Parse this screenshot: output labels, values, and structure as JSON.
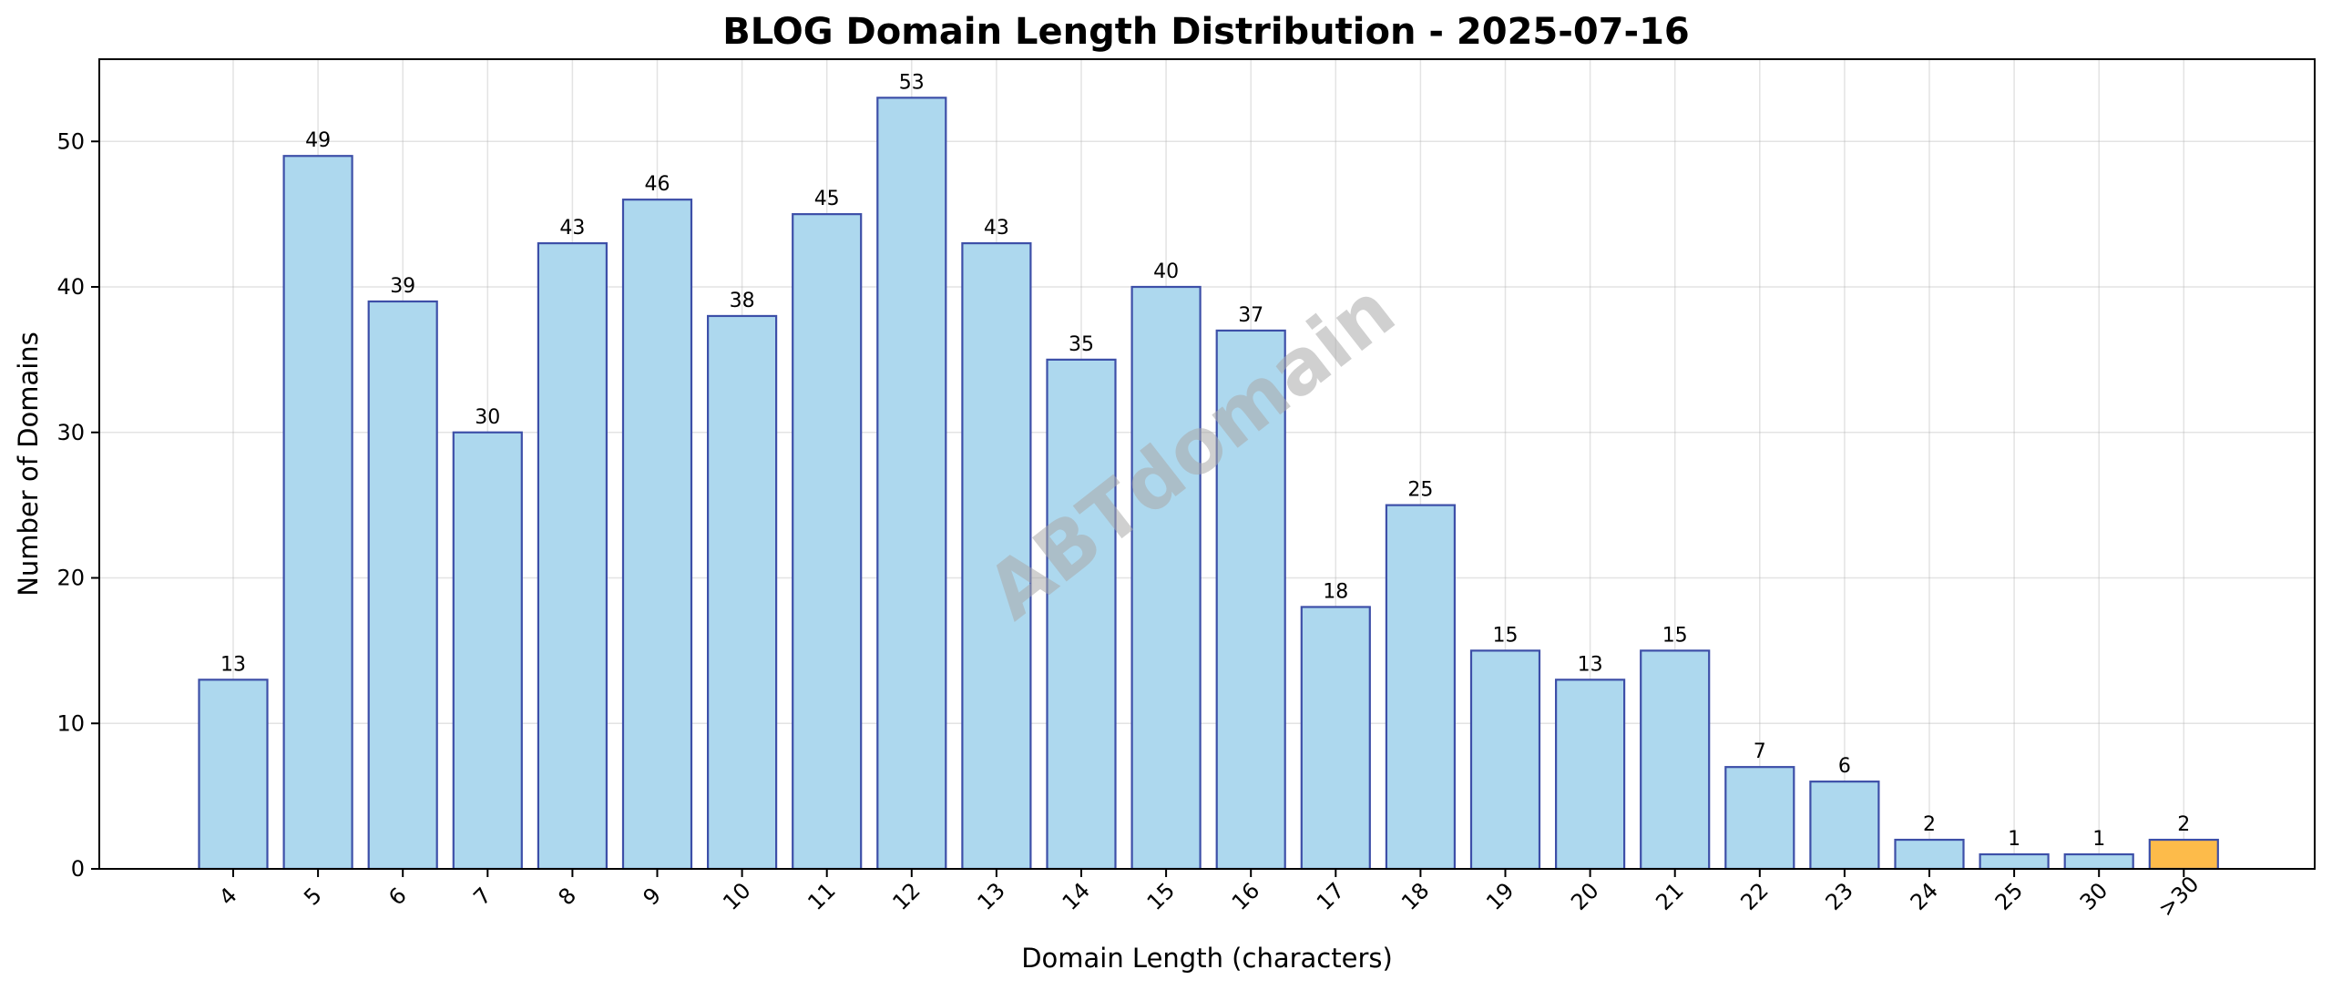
{
  "chart_data": {
    "type": "bar",
    "title": "BLOG Domain Length Distribution - 2025-07-16",
    "xlabel": "Domain Length (characters)",
    "ylabel": "Number of Domains",
    "categories": [
      "4",
      "5",
      "6",
      "7",
      "8",
      "9",
      "10",
      "11",
      "12",
      "13",
      "14",
      "15",
      "16",
      "17",
      "18",
      "19",
      "20",
      "21",
      "22",
      "23",
      "24",
      "25",
      "30",
      ">30"
    ],
    "values": [
      13,
      49,
      39,
      30,
      43,
      46,
      38,
      45,
      53,
      43,
      35,
      40,
      37,
      18,
      25,
      15,
      13,
      15,
      7,
      6,
      2,
      1,
      1,
      2
    ],
    "ylim": [
      0,
      55.65
    ],
    "yticks": [
      0,
      10,
      20,
      30,
      40,
      50
    ],
    "grid": true,
    "legend": "none",
    "colors": {
      "bar": "#add8ee",
      "bar_edge": "#3d4fa8",
      "highlight_bar": "#fdbb4a",
      "highlight_category": ">30"
    },
    "watermark": "ABTdomain"
  }
}
